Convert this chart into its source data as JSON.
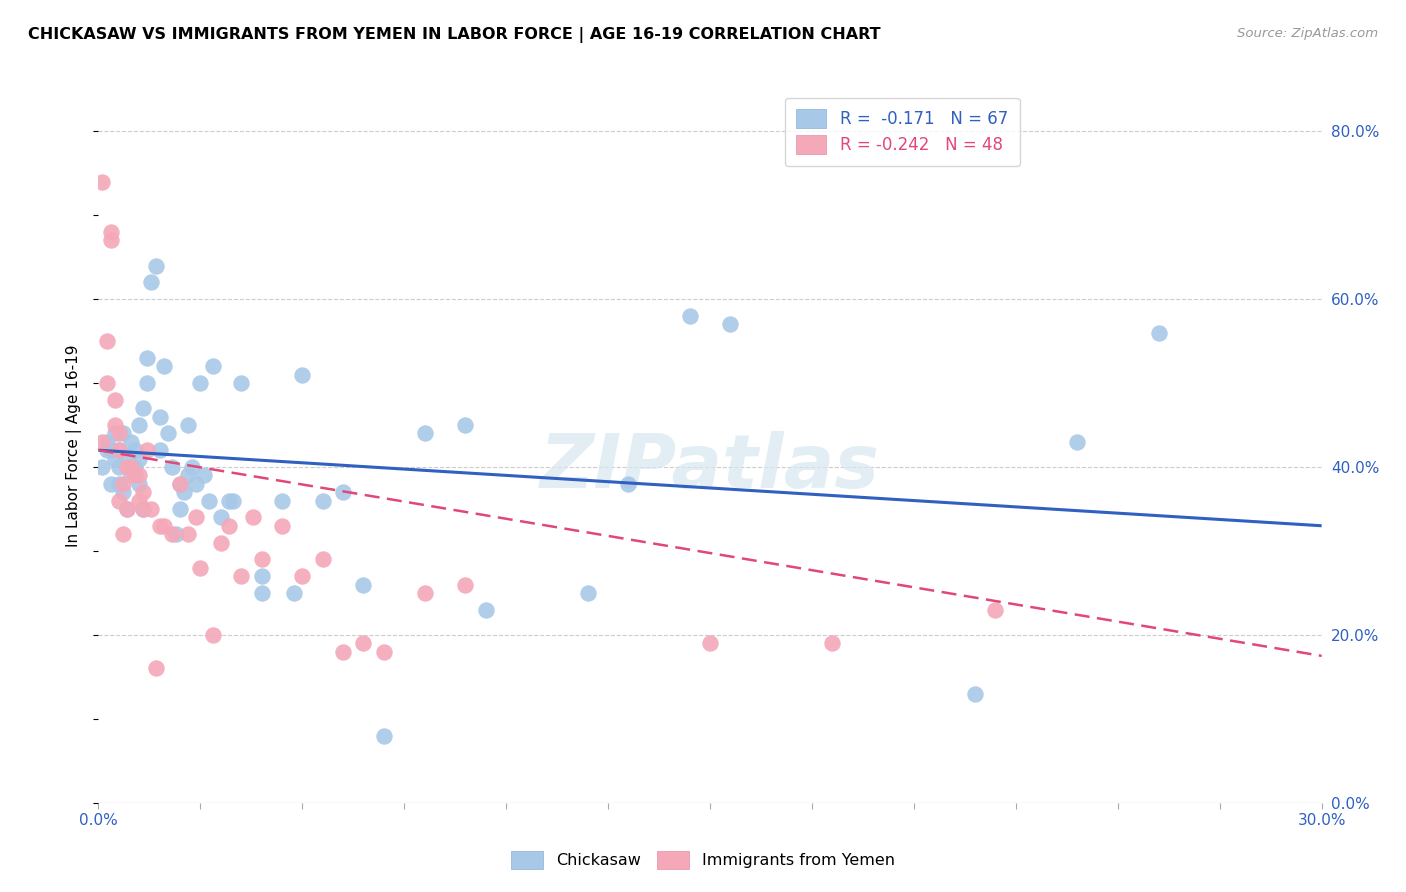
{
  "title": "CHICKASAW VS IMMIGRANTS FROM YEMEN IN LABOR FORCE | AGE 16-19 CORRELATION CHART",
  "source": "Source: ZipAtlas.com",
  "ylabel": "In Labor Force | Age 16-19",
  "xlim": [
    0.0,
    0.3
  ],
  "ylim": [
    0.0,
    0.85
  ],
  "xtick_vals": [
    0.0,
    0.025,
    0.05,
    0.075,
    0.1,
    0.125,
    0.15,
    0.175,
    0.2,
    0.225,
    0.25,
    0.275,
    0.3
  ],
  "xtick_show_labels": [
    0.0,
    0.3
  ],
  "xtick_label_map": {
    "0.0": "0.0%",
    "0.3": "30.0%"
  },
  "ytick_right_vals": [
    0.0,
    0.2,
    0.4,
    0.6,
    0.8
  ],
  "ytick_right_labels": [
    "0.0%",
    "20.0%",
    "40.0%",
    "60.0%",
    "80.0%"
  ],
  "blue_scatter_color": "#a8c8e8",
  "pink_scatter_color": "#f4a8b8",
  "blue_line_color": "#3060c0",
  "pink_line_color": "#e04878",
  "grid_color": "#cccccc",
  "watermark": "ZIPatlas",
  "R_blue": -0.171,
  "N_blue": 67,
  "R_pink": -0.242,
  "N_pink": 48,
  "blue_line_x0": 0.0,
  "blue_line_y0": 0.42,
  "blue_line_x1": 0.3,
  "blue_line_y1": 0.33,
  "pink_line_x0": 0.0,
  "pink_line_y0": 0.42,
  "pink_line_x1": 0.3,
  "pink_line_y1": 0.175,
  "blue_scatter_x": [
    0.001,
    0.002,
    0.002,
    0.003,
    0.003,
    0.004,
    0.004,
    0.005,
    0.005,
    0.005,
    0.006,
    0.006,
    0.007,
    0.007,
    0.008,
    0.008,
    0.009,
    0.009,
    0.01,
    0.01,
    0.01,
    0.011,
    0.011,
    0.012,
    0.012,
    0.013,
    0.014,
    0.015,
    0.015,
    0.016,
    0.017,
    0.018,
    0.019,
    0.02,
    0.02,
    0.021,
    0.022,
    0.022,
    0.023,
    0.024,
    0.025,
    0.026,
    0.027,
    0.028,
    0.03,
    0.032,
    0.033,
    0.035,
    0.04,
    0.04,
    0.045,
    0.048,
    0.05,
    0.055,
    0.06,
    0.065,
    0.07,
    0.08,
    0.09,
    0.095,
    0.12,
    0.13,
    0.145,
    0.155,
    0.215,
    0.24,
    0.26
  ],
  "blue_scatter_y": [
    0.4,
    0.42,
    0.43,
    0.38,
    0.42,
    0.44,
    0.41,
    0.42,
    0.4,
    0.38,
    0.44,
    0.37,
    0.35,
    0.41,
    0.39,
    0.43,
    0.42,
    0.4,
    0.38,
    0.45,
    0.41,
    0.47,
    0.35,
    0.53,
    0.5,
    0.62,
    0.64,
    0.46,
    0.42,
    0.52,
    0.44,
    0.4,
    0.32,
    0.38,
    0.35,
    0.37,
    0.45,
    0.39,
    0.4,
    0.38,
    0.5,
    0.39,
    0.36,
    0.52,
    0.34,
    0.36,
    0.36,
    0.5,
    0.25,
    0.27,
    0.36,
    0.25,
    0.51,
    0.36,
    0.37,
    0.26,
    0.08,
    0.44,
    0.45,
    0.23,
    0.25,
    0.38,
    0.58,
    0.57,
    0.13,
    0.43,
    0.56
  ],
  "pink_scatter_x": [
    0.001,
    0.001,
    0.002,
    0.002,
    0.003,
    0.003,
    0.004,
    0.004,
    0.005,
    0.005,
    0.005,
    0.006,
    0.006,
    0.007,
    0.007,
    0.008,
    0.009,
    0.01,
    0.01,
    0.011,
    0.011,
    0.012,
    0.013,
    0.014,
    0.015,
    0.016,
    0.018,
    0.02,
    0.022,
    0.024,
    0.025,
    0.028,
    0.03,
    0.032,
    0.035,
    0.038,
    0.04,
    0.045,
    0.05,
    0.055,
    0.06,
    0.065,
    0.07,
    0.08,
    0.09,
    0.15,
    0.18,
    0.22
  ],
  "pink_scatter_y": [
    0.74,
    0.43,
    0.55,
    0.5,
    0.68,
    0.67,
    0.45,
    0.48,
    0.44,
    0.42,
    0.36,
    0.38,
    0.32,
    0.35,
    0.4,
    0.4,
    0.39,
    0.39,
    0.36,
    0.37,
    0.35,
    0.42,
    0.35,
    0.16,
    0.33,
    0.33,
    0.32,
    0.38,
    0.32,
    0.34,
    0.28,
    0.2,
    0.31,
    0.33,
    0.27,
    0.34,
    0.29,
    0.33,
    0.27,
    0.29,
    0.18,
    0.19,
    0.18,
    0.25,
    0.26,
    0.19,
    0.19,
    0.23
  ]
}
